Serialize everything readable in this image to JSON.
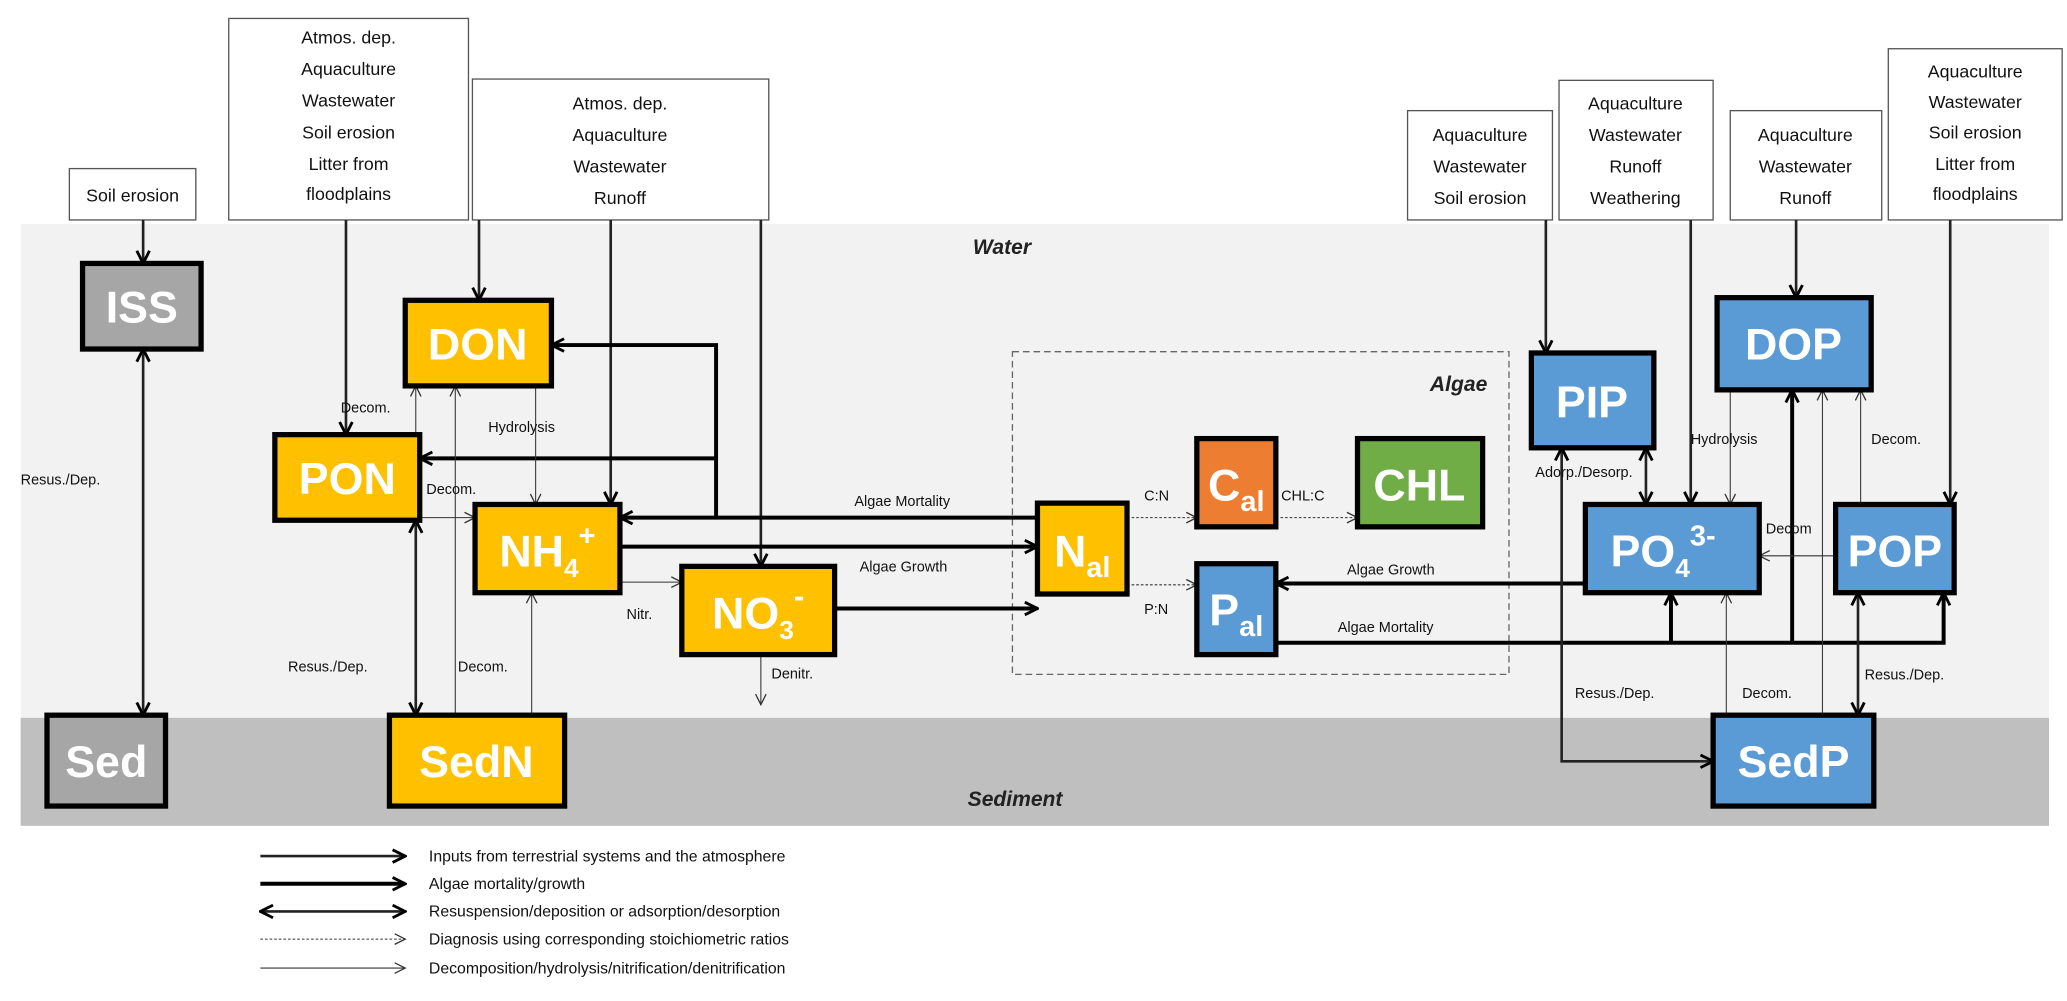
{
  "zones": {
    "water": "Water",
    "sediment": "Sediment",
    "algae": "Algae"
  },
  "colors": {
    "nitrogen": "#ffc000",
    "phosphorus": "#5b9bd5",
    "carbon": "#ed7d31",
    "chlorophyll": "#70ad47",
    "solids": "#a6a6a6",
    "water_band": "#f2f2f2",
    "sediment_band": "#bfbfbf"
  },
  "sources": {
    "iss": [
      "Soil erosion"
    ],
    "pon": [
      "Atmos. dep.",
      "Aquaculture",
      "Wastewater",
      "Soil erosion",
      "Litter from",
      "floodplains"
    ],
    "din": [
      "Atmos. dep.",
      "Aquaculture",
      "Wastewater",
      "Runoff"
    ],
    "pip": [
      "Aquaculture",
      "Wastewater",
      "Soil erosion"
    ],
    "po4": [
      "Aquaculture",
      "Wastewater",
      "Runoff",
      "Weathering"
    ],
    "dop": [
      "Aquaculture",
      "Wastewater",
      "Runoff"
    ],
    "pop": [
      "Aquaculture",
      "Wastewater",
      "Soil erosion",
      "Litter from",
      "floodplains"
    ]
  },
  "nodes": {
    "iss": {
      "main": "ISS"
    },
    "sed": {
      "main": "Sed"
    },
    "don": {
      "main": "DON"
    },
    "pon": {
      "main": "PON"
    },
    "nh4": {
      "main": "NH",
      "sub": "4",
      "sup": "+"
    },
    "no3": {
      "main": "NO",
      "sub": "3",
      "sup": "-"
    },
    "sedn": {
      "main": "SedN"
    },
    "nal": {
      "main": "N",
      "sub": "al"
    },
    "cal": {
      "main": "C",
      "sub": "al"
    },
    "chl": {
      "main": "CHL"
    },
    "pal": {
      "main": "P",
      "sub": "al"
    },
    "pip": {
      "main": "PIP"
    },
    "dop": {
      "main": "DOP"
    },
    "po4": {
      "main": "PO",
      "sub": "4",
      "sup": "3-"
    },
    "pop": {
      "main": "POP"
    },
    "sedp": {
      "main": "SedP"
    }
  },
  "edge_labels": {
    "iss_resus": "Resus./Dep.",
    "pon_don_decom": "Decom.",
    "hydrolysis_n": "Hydrolysis",
    "pon_nh4_decom": "Decom.",
    "algae_mortality_n": "Algae Mortality",
    "algae_growth_n": "Algae Growth",
    "nitr": "Nitr.",
    "denitr": "Denitr.",
    "pon_resus": "Resus./Dep.",
    "sedn_decom": "Decom.",
    "cn": "C:N",
    "chlc": "CHL:C",
    "pn": "P:N",
    "algae_growth_p": "Algae Growth",
    "algae_mortality_p": "Algae Mortality",
    "adsorp": "Adorp./Desorp.",
    "hydrolysis_p": "Hydrolysis",
    "pop_dop_decom": "Decom.",
    "pop_po4_decom": "Decom",
    "pip_resus": "Resus./Dep.",
    "sedp_decom": "Decom.",
    "pop_resus": "Resus./Dep."
  },
  "legend": [
    {
      "style": "input",
      "label": "Inputs from terrestrial systems and the atmosphere"
    },
    {
      "style": "algae",
      "label": "Algae mortality/growth"
    },
    {
      "style": "double",
      "label": "Resuspension/deposition or adsorption/desorption"
    },
    {
      "style": "dotted",
      "label": "Diagnosis using corresponding stoichiometric ratios"
    },
    {
      "style": "thin",
      "label": "Decomposition/hydrolysis/nitrification/denitrification"
    }
  ]
}
